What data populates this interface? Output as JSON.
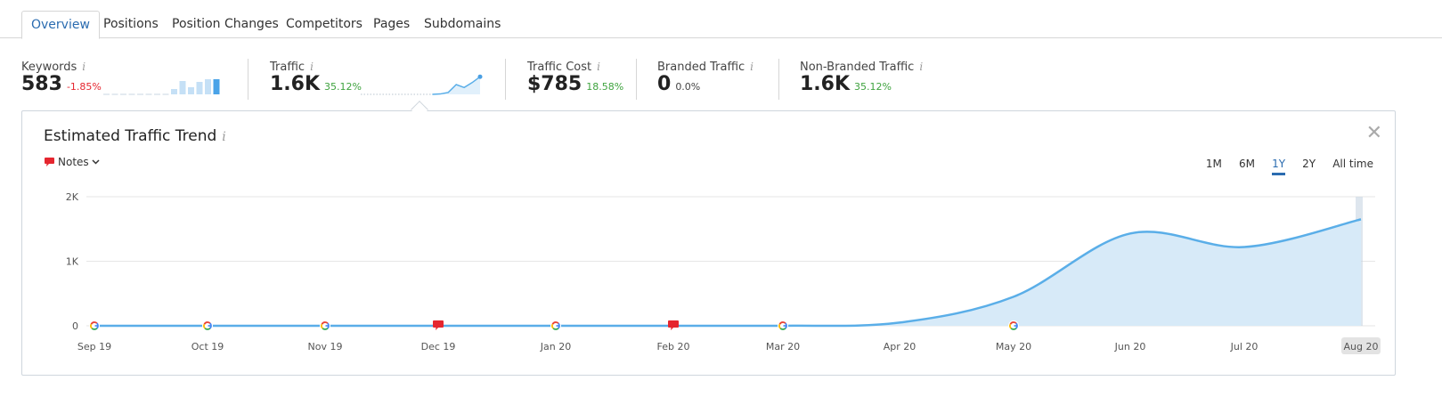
{
  "tabs": [
    {
      "label": "Overview",
      "active": true
    },
    {
      "label": "Positions"
    },
    {
      "label": "Position Changes"
    },
    {
      "label": "Competitors"
    },
    {
      "label": "Pages"
    },
    {
      "label": "Subdomains"
    }
  ],
  "metrics": {
    "keywords": {
      "label": "Keywords",
      "value": "583",
      "change": "-1.85%"
    },
    "traffic": {
      "label": "Traffic",
      "value": "1.6K",
      "change": "35.12%"
    },
    "traffic_cost": {
      "label": "Traffic Cost",
      "value": "$785",
      "change": "18.58%"
    },
    "branded": {
      "label": "Branded Traffic",
      "value": "0",
      "change": "0.0%"
    },
    "non_branded": {
      "label": "Non-Branded Traffic",
      "value": "1.6K",
      "change": "35.12%"
    }
  },
  "info_glyph": "i",
  "keywords_sparkline": [
    0,
    0,
    0,
    0,
    0,
    0,
    0,
    0,
    0.3,
    0.75,
    0.4,
    0.7,
    0.85,
    0.85
  ],
  "traffic_sparkline": [
    0,
    0,
    0,
    0,
    0,
    0,
    0,
    0,
    0,
    0,
    0.02,
    0.1,
    0.5,
    0.35,
    0.6,
    0.9
  ],
  "panel": {
    "title": "Estimated Traffic Trend",
    "notes_label": "Notes",
    "close": "✕",
    "ranges": [
      "1M",
      "6M",
      "1Y",
      "2Y",
      "All time"
    ],
    "active_range": "1Y"
  },
  "colors": {
    "accent": "#2b6cb0",
    "line": "#5aaee8",
    "area": "#d7eaf8",
    "note_red": "#e5262f"
  },
  "chart_data": {
    "type": "area",
    "title": "Estimated Traffic Trend",
    "categories": [
      "Sep 19",
      "Oct 19",
      "Nov 19",
      "Dec 19",
      "Jan 20",
      "Feb 20",
      "Mar 20",
      "Apr 20",
      "May 20",
      "Jun 20",
      "Jul 20",
      "Aug 20"
    ],
    "series": [
      {
        "values": [
          0,
          0,
          0,
          0,
          0,
          0,
          0,
          50,
          450,
          1430,
          1220,
          1650
        ]
      }
    ],
    "yticks": [
      "0",
      "1K",
      "2K"
    ],
    "ylim": [
      0,
      2000
    ],
    "grid": true,
    "markers": [
      {
        "month": "Sep 19",
        "type": "google-icon"
      },
      {
        "month": "Oct 19",
        "type": "google-icon"
      },
      {
        "month": "Nov 19",
        "type": "google-icon"
      },
      {
        "month": "Dec 19",
        "type": "note-icon"
      },
      {
        "month": "Jan 20",
        "type": "google-icon"
      },
      {
        "month": "Feb 20",
        "type": "note-icon"
      },
      {
        "month": "Mar 20",
        "type": "google-icon"
      },
      {
        "month": "May 20",
        "type": "google-icon"
      }
    ],
    "highlighted_label": "Aug 20"
  }
}
